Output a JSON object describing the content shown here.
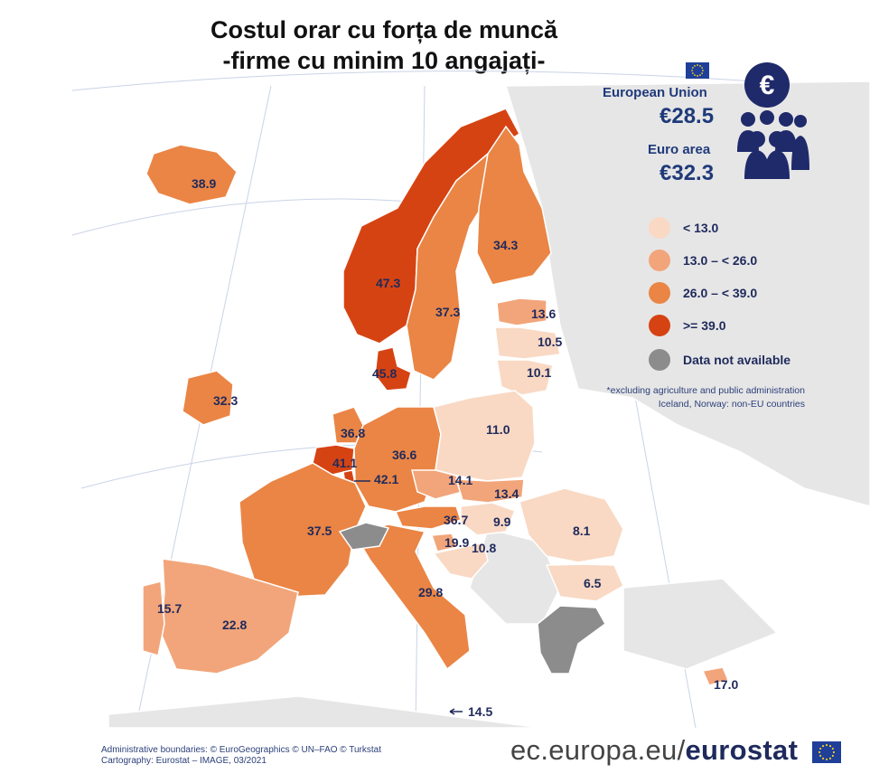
{
  "title": {
    "line1": "Costul orar cu forța de muncă",
    "line2": "-firme cu minim 10 angajați-"
  },
  "summary": {
    "eu_label": "European Union",
    "eu_value": "€28.5",
    "euro_area_label": "Euro area",
    "euro_area_value": "€32.3"
  },
  "legend": {
    "items": [
      {
        "label": "< 13.0",
        "color": "#f9d9c4"
      },
      {
        "label": "13.0 – < 26.0",
        "color": "#f2a57a"
      },
      {
        "label": "26.0 – < 39.0",
        "color": "#ea8545"
      },
      {
        "label": ">= 39.0",
        "color": "#d64312"
      },
      {
        "label": "Data not available",
        "color": "#8c8c8c"
      }
    ]
  },
  "notes": {
    "line1": "*excluding agriculture and public administration",
    "line2": "Iceland, Norway: non-EU countries"
  },
  "map_data": {
    "unit": "EUR per hour",
    "values": [
      {
        "label": "38.9",
        "region": "Iceland",
        "value": 38.9,
        "color": "#ea8545"
      },
      {
        "label": "47.3",
        "region": "Norway",
        "value": 47.3,
        "color": "#d64312"
      },
      {
        "label": "37.3",
        "region": "Sweden",
        "value": 37.3,
        "color": "#ea8545"
      },
      {
        "label": "34.3",
        "region": "Finland",
        "value": 34.3,
        "color": "#ea8545"
      },
      {
        "label": "13.6",
        "region": "Estonia",
        "value": 13.6,
        "color": "#f2a57a"
      },
      {
        "label": "10.5",
        "region": "Latvia",
        "value": 10.5,
        "color": "#f9d9c4"
      },
      {
        "label": "10.1",
        "region": "Lithuania",
        "value": 10.1,
        "color": "#f9d9c4"
      },
      {
        "label": "45.8",
        "region": "Denmark",
        "value": 45.8,
        "color": "#d64312"
      },
      {
        "label": "32.3",
        "region": "Ireland",
        "value": 32.3,
        "color": "#ea8545"
      },
      {
        "label": "36.8",
        "region": "Netherlands",
        "value": 36.8,
        "color": "#ea8545"
      },
      {
        "label": "41.1",
        "region": "Belgium",
        "value": 41.1,
        "color": "#d64312"
      },
      {
        "label": "42.1",
        "region": "Luxembourg",
        "value": 42.1,
        "color": "#d64312"
      },
      {
        "label": "36.6",
        "region": "Germany",
        "value": 36.6,
        "color": "#ea8545"
      },
      {
        "label": "11.0",
        "region": "Poland",
        "value": 11.0,
        "color": "#f9d9c4"
      },
      {
        "label": "14.1",
        "region": "Czechia",
        "value": 14.1,
        "color": "#f2a57a"
      },
      {
        "label": "13.4",
        "region": "Slovakia",
        "value": 13.4,
        "color": "#f2a57a"
      },
      {
        "label": "36.7",
        "region": "Austria",
        "value": 36.7,
        "color": "#ea8545"
      },
      {
        "label": "9.9",
        "region": "Hungary",
        "value": 9.9,
        "color": "#f9d9c4"
      },
      {
        "label": "8.1",
        "region": "Romania",
        "value": 8.1,
        "color": "#f9d9c4"
      },
      {
        "label": "6.5",
        "region": "Bulgaria",
        "value": 6.5,
        "color": "#f9d9c4"
      },
      {
        "label": "19.9",
        "region": "Slovenia",
        "value": 19.9,
        "color": "#f2a57a"
      },
      {
        "label": "10.8",
        "region": "Croatia",
        "value": 10.8,
        "color": "#f9d9c4"
      },
      {
        "label": "37.5",
        "region": "France",
        "value": 37.5,
        "color": "#ea8545"
      },
      {
        "label": "29.8",
        "region": "Italy",
        "value": 29.8,
        "color": "#ea8545"
      },
      {
        "label": "22.8",
        "region": "Spain",
        "value": 22.8,
        "color": "#f2a57a"
      },
      {
        "label": "15.7",
        "region": "Portugal",
        "value": 15.7,
        "color": "#f2a57a"
      },
      {
        "label": "14.5",
        "region": "Malta",
        "value": 14.5,
        "color": "#f2a57a"
      },
      {
        "label": "17.0",
        "region": "Cyprus",
        "value": 17.0,
        "color": "#f2a57a"
      }
    ],
    "not_available": [
      "Switzerland",
      "Greece"
    ],
    "not_available_color": "#8c8c8c",
    "sea_color": "#ffffff",
    "non_covered_land_color": "#e6e6e6"
  },
  "credits": {
    "line1": "Administrative boundaries: © EuroGeographics © UN–FAO © Turkstat",
    "line2": "Cartography: Eurostat – IMAGE, 03/2021"
  },
  "brand": {
    "prefix": "ec.europa.eu/",
    "name": "eurostat"
  }
}
